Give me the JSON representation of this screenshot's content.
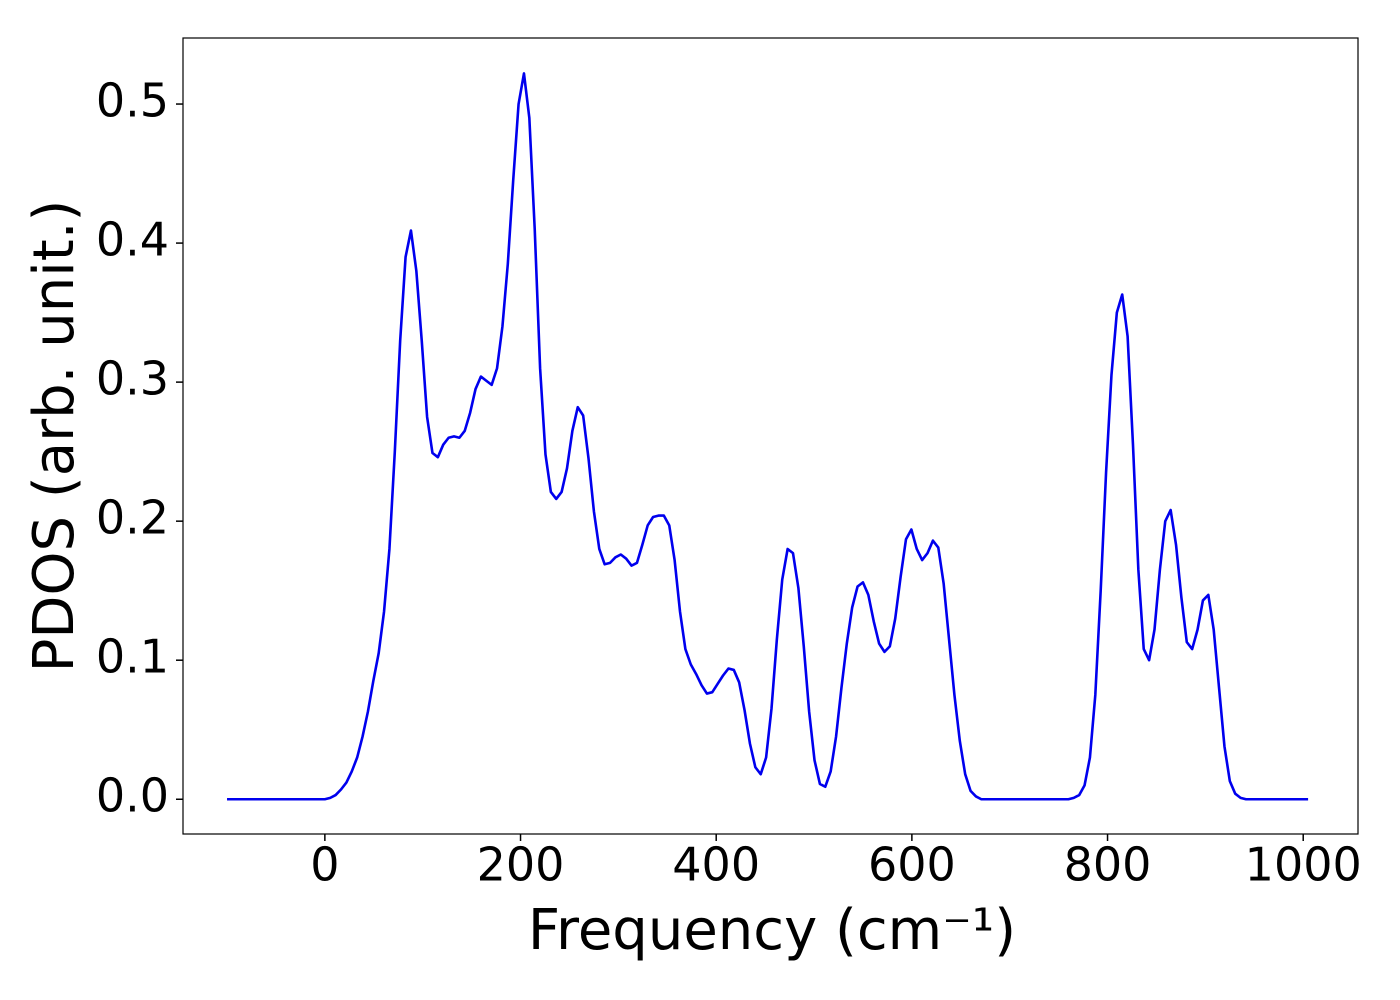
{
  "chart_data": {
    "type": "line",
    "xlabel": "Frequency (cm⁻¹)",
    "ylabel": "PDOS (arb. unit.)",
    "x": [
      -100,
      -50,
      0,
      5.5,
      11,
      16.5,
      22,
      27.5,
      33,
      38.5,
      44,
      49.5,
      55,
      60.5,
      66,
      71.5,
      77,
      82.5,
      88,
      93.5,
      99,
      104.5,
      110,
      115.5,
      121,
      126.5,
      132,
      137.5,
      143,
      148.5,
      154,
      159.5,
      165,
      170.5,
      176,
      181.5,
      187,
      192.5,
      198,
      203.5,
      209,
      214.5,
      220,
      225.5,
      231,
      236.5,
      242,
      247.5,
      253,
      258.5,
      264,
      269.5,
      275,
      280.5,
      286,
      291.5,
      297,
      302.5,
      308,
      313.5,
      319,
      324.5,
      330,
      335.5,
      341,
      346.5,
      352,
      357.5,
      363,
      368.5,
      374,
      379.5,
      385,
      390.5,
      396,
      401.5,
      407,
      412.5,
      418,
      423.5,
      429,
      434.5,
      440,
      445.5,
      451,
      456.5,
      462,
      467.5,
      473,
      478.5,
      484,
      489.5,
      495,
      500.5,
      506,
      511.5,
      517,
      522.5,
      528,
      533.5,
      539,
      544.5,
      550,
      555.5,
      561,
      566.5,
      572,
      577.5,
      583,
      588.5,
      594,
      599.5,
      605,
      610.5,
      616,
      621.5,
      627,
      632.5,
      638,
      643.5,
      649,
      654.5,
      660,
      665.5,
      671,
      720,
      760,
      765.5,
      771,
      776.5,
      782,
      787.5,
      793,
      798.5,
      804,
      809.5,
      815,
      820.5,
      826,
      831.5,
      837,
      842.5,
      848,
      853.5,
      859,
      864.5,
      870,
      875.5,
      881,
      886.5,
      892,
      897.5,
      903,
      908.5,
      914,
      919.5,
      925,
      930.5,
      936,
      941.5,
      1005
    ],
    "series": [
      {
        "name": "PDOS",
        "color": "#0000ee",
        "values": [
          0,
          0,
          0,
          0.001,
          0.003,
          0.007,
          0.012,
          0.02,
          0.03,
          0.045,
          0.063,
          0.085,
          0.105,
          0.135,
          0.18,
          0.25,
          0.33,
          0.39,
          0.409,
          0.38,
          0.33,
          0.275,
          0.249,
          0.246,
          0.255,
          0.26,
          0.261,
          0.26,
          0.265,
          0.278,
          0.295,
          0.304,
          0.301,
          0.298,
          0.31,
          0.34,
          0.385,
          0.445,
          0.5,
          0.522,
          0.49,
          0.41,
          0.31,
          0.248,
          0.221,
          0.216,
          0.221,
          0.238,
          0.265,
          0.282,
          0.276,
          0.245,
          0.207,
          0.18,
          0.169,
          0.17,
          0.174,
          0.176,
          0.173,
          0.168,
          0.17,
          0.183,
          0.197,
          0.203,
          0.204,
          0.204,
          0.197,
          0.172,
          0.135,
          0.108,
          0.097,
          0.09,
          0.082,
          0.076,
          0.077,
          0.083,
          0.089,
          0.094,
          0.093,
          0.084,
          0.064,
          0.04,
          0.023,
          0.018,
          0.03,
          0.065,
          0.115,
          0.158,
          0.18,
          0.177,
          0.152,
          0.11,
          0.063,
          0.028,
          0.011,
          0.009,
          0.02,
          0.045,
          0.08,
          0.112,
          0.138,
          0.153,
          0.156,
          0.147,
          0.128,
          0.112,
          0.106,
          0.11,
          0.13,
          0.16,
          0.187,
          0.194,
          0.18,
          0.172,
          0.177,
          0.186,
          0.181,
          0.155,
          0.115,
          0.075,
          0.042,
          0.018,
          0.006,
          0.002,
          0,
          0,
          0,
          0.001,
          0.003,
          0.01,
          0.03,
          0.075,
          0.15,
          0.235,
          0.305,
          0.35,
          0.363,
          0.333,
          0.255,
          0.165,
          0.108,
          0.1,
          0.122,
          0.165,
          0.2,
          0.208,
          0.183,
          0.145,
          0.113,
          0.108,
          0.122,
          0.143,
          0.147,
          0.122,
          0.08,
          0.038,
          0.013,
          0.004,
          0.001,
          0,
          0
        ]
      }
    ],
    "xlim": [
      -145,
      1056
    ],
    "ylim": [
      -0.025,
      0.5475
    ],
    "xticks": [
      0,
      200,
      400,
      600,
      800,
      1000
    ],
    "yticks": [
      {
        "value": 0,
        "label": "0.0"
      },
      0.1,
      0.2,
      0.3,
      0.4,
      0.5
    ],
    "grid": false
  }
}
